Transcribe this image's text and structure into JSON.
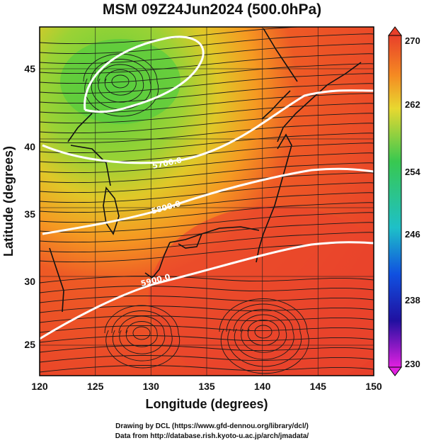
{
  "title": "MSM 09Z24Jun2024 (500.0hPa)",
  "xaxis": {
    "label": "Longitude (degrees)",
    "ticks": [
      "120",
      "125",
      "130",
      "135",
      "140",
      "145",
      "150"
    ]
  },
  "yaxis": {
    "label": "Latitude  (degrees)",
    "ticks": [
      "25",
      "30",
      "35",
      "40",
      "45"
    ]
  },
  "colorbar": {
    "ticks": [
      "270",
      "262",
      "254",
      "246",
      "238",
      "230"
    ],
    "min": 230,
    "max": 270
  },
  "contours": [
    {
      "label": "5700.0"
    },
    {
      "label": "5800.0"
    },
    {
      "label": "5900.0"
    }
  ],
  "credits": {
    "line1": "Drawing by DCL (https://www.gfd-dennou.org/library/dcl/)",
    "line2": "Data from http://database.rish.kyoto-u.ac.jp/arch/jmadata/"
  },
  "colors": {
    "warm": "#e8402a",
    "mid": "#f2a020",
    "cool": "#62d03a",
    "contour": "#ffffff"
  }
}
